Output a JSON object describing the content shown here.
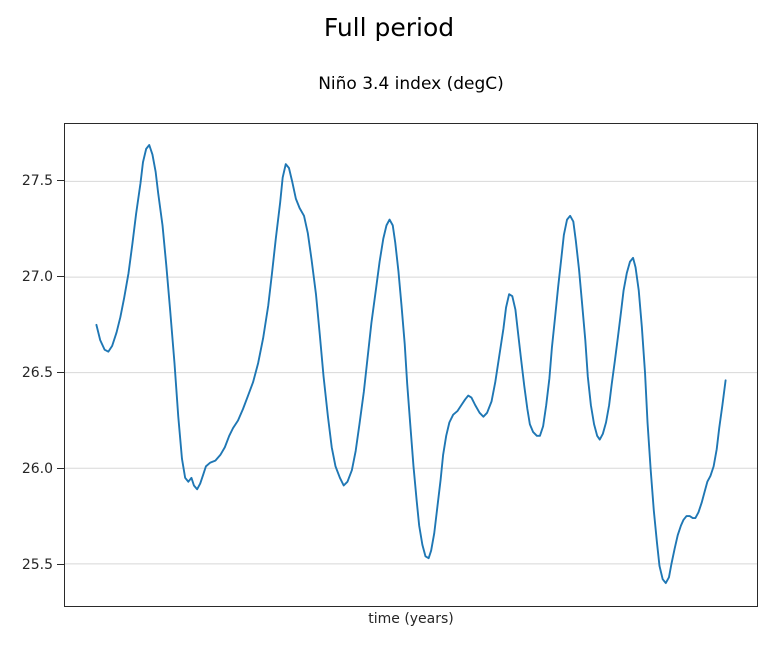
{
  "chart_data": {
    "type": "line",
    "title": "Full period",
    "subtitle": "Niño 3.4 index (degC)",
    "xlabel": "time (years)",
    "ylabel": "",
    "x_tick_labels": [],
    "y_ticks": [
      27.5,
      27.0,
      26.5,
      26.0,
      25.5
    ],
    "ylim": [
      25.28,
      27.8
    ],
    "xlim_fraction": [
      -0.05,
      1.05
    ],
    "grid": "horizontal-only",
    "grid_color": "#d8d8d8",
    "spine_color": "#2a2a2a",
    "legend": "none",
    "series": [
      {
        "name": "Niño 3.4 index (degC)",
        "color": "#1f77b4",
        "points": [
          [
            0.0,
            26.75
          ],
          [
            0.006,
            26.67
          ],
          [
            0.013,
            26.62
          ],
          [
            0.019,
            26.61
          ],
          [
            0.025,
            26.64
          ],
          [
            0.032,
            26.71
          ],
          [
            0.038,
            26.79
          ],
          [
            0.044,
            26.89
          ],
          [
            0.051,
            27.02
          ],
          [
            0.057,
            27.17
          ],
          [
            0.063,
            27.33
          ],
          [
            0.07,
            27.49
          ],
          [
            0.074,
            27.6
          ],
          [
            0.079,
            27.67
          ],
          [
            0.084,
            27.69
          ],
          [
            0.089,
            27.64
          ],
          [
            0.094,
            27.55
          ],
          [
            0.098,
            27.44
          ],
          [
            0.105,
            27.27
          ],
          [
            0.111,
            27.06
          ],
          [
            0.117,
            26.83
          ],
          [
            0.124,
            26.55
          ],
          [
            0.13,
            26.27
          ],
          [
            0.136,
            26.05
          ],
          [
            0.141,
            25.95
          ],
          [
            0.146,
            25.93
          ],
          [
            0.151,
            25.95
          ],
          [
            0.155,
            25.91
          ],
          [
            0.16,
            25.89
          ],
          [
            0.165,
            25.92
          ],
          [
            0.17,
            25.97
          ],
          [
            0.174,
            26.01
          ],
          [
            0.181,
            26.03
          ],
          [
            0.189,
            26.04
          ],
          [
            0.197,
            26.07
          ],
          [
            0.204,
            26.11
          ],
          [
            0.211,
            26.17
          ],
          [
            0.217,
            26.21
          ],
          [
            0.225,
            26.25
          ],
          [
            0.233,
            26.31
          ],
          [
            0.241,
            26.38
          ],
          [
            0.249,
            26.45
          ],
          [
            0.257,
            26.55
          ],
          [
            0.265,
            26.68
          ],
          [
            0.273,
            26.85
          ],
          [
            0.279,
            27.02
          ],
          [
            0.285,
            27.2
          ],
          [
            0.292,
            27.39
          ],
          [
            0.296,
            27.52
          ],
          [
            0.301,
            27.59
          ],
          [
            0.306,
            27.57
          ],
          [
            0.311,
            27.5
          ],
          [
            0.317,
            27.41
          ],
          [
            0.323,
            27.36
          ],
          [
            0.33,
            27.32
          ],
          [
            0.336,
            27.23
          ],
          [
            0.342,
            27.09
          ],
          [
            0.349,
            26.91
          ],
          [
            0.355,
            26.7
          ],
          [
            0.361,
            26.48
          ],
          [
            0.368,
            26.27
          ],
          [
            0.374,
            26.11
          ],
          [
            0.38,
            26.01
          ],
          [
            0.387,
            25.95
          ],
          [
            0.393,
            25.91
          ],
          [
            0.399,
            25.93
          ],
          [
            0.406,
            25.99
          ],
          [
            0.412,
            26.09
          ],
          [
            0.418,
            26.23
          ],
          [
            0.425,
            26.4
          ],
          [
            0.431,
            26.58
          ],
          [
            0.437,
            26.76
          ],
          [
            0.444,
            26.93
          ],
          [
            0.45,
            27.08
          ],
          [
            0.456,
            27.2
          ],
          [
            0.461,
            27.27
          ],
          [
            0.466,
            27.3
          ],
          [
            0.471,
            27.27
          ],
          [
            0.475,
            27.18
          ],
          [
            0.48,
            27.03
          ],
          [
            0.485,
            26.85
          ],
          [
            0.49,
            26.65
          ],
          [
            0.494,
            26.44
          ],
          [
            0.499,
            26.22
          ],
          [
            0.504,
            26.01
          ],
          [
            0.509,
            25.83
          ],
          [
            0.513,
            25.7
          ],
          [
            0.518,
            25.6
          ],
          [
            0.523,
            25.54
          ],
          [
            0.528,
            25.53
          ],
          [
            0.532,
            25.57
          ],
          [
            0.537,
            25.66
          ],
          [
            0.542,
            25.8
          ],
          [
            0.547,
            25.94
          ],
          [
            0.551,
            26.07
          ],
          [
            0.556,
            26.17
          ],
          [
            0.561,
            26.24
          ],
          [
            0.567,
            26.28
          ],
          [
            0.574,
            26.3
          ],
          [
            0.58,
            26.33
          ],
          [
            0.586,
            26.36
          ],
          [
            0.591,
            26.38
          ],
          [
            0.596,
            26.37
          ],
          [
            0.602,
            26.33
          ],
          [
            0.609,
            26.29
          ],
          [
            0.615,
            26.27
          ],
          [
            0.621,
            26.29
          ],
          [
            0.628,
            26.35
          ],
          [
            0.634,
            26.45
          ],
          [
            0.64,
            26.58
          ],
          [
            0.647,
            26.73
          ],
          [
            0.651,
            26.84
          ],
          [
            0.656,
            26.91
          ],
          [
            0.661,
            26.9
          ],
          [
            0.666,
            26.83
          ],
          [
            0.67,
            26.71
          ],
          [
            0.675,
            26.57
          ],
          [
            0.68,
            26.43
          ],
          [
            0.685,
            26.31
          ],
          [
            0.689,
            26.23
          ],
          [
            0.694,
            26.19
          ],
          [
            0.7,
            26.17
          ],
          [
            0.705,
            26.17
          ],
          [
            0.71,
            26.22
          ],
          [
            0.715,
            26.33
          ],
          [
            0.72,
            26.47
          ],
          [
            0.724,
            26.63
          ],
          [
            0.729,
            26.79
          ],
          [
            0.734,
            26.95
          ],
          [
            0.739,
            27.1
          ],
          [
            0.743,
            27.22
          ],
          [
            0.748,
            27.3
          ],
          [
            0.753,
            27.32
          ],
          [
            0.758,
            27.29
          ],
          [
            0.762,
            27.19
          ],
          [
            0.767,
            27.04
          ],
          [
            0.772,
            26.86
          ],
          [
            0.777,
            26.67
          ],
          [
            0.781,
            26.48
          ],
          [
            0.786,
            26.33
          ],
          [
            0.791,
            26.23
          ],
          [
            0.796,
            26.17
          ],
          [
            0.8,
            26.15
          ],
          [
            0.805,
            26.18
          ],
          [
            0.81,
            26.24
          ],
          [
            0.815,
            26.33
          ],
          [
            0.819,
            26.44
          ],
          [
            0.824,
            26.56
          ],
          [
            0.829,
            26.69
          ],
          [
            0.834,
            26.82
          ],
          [
            0.838,
            26.93
          ],
          [
            0.843,
            27.02
          ],
          [
            0.848,
            27.08
          ],
          [
            0.853,
            27.1
          ],
          [
            0.857,
            27.05
          ],
          [
            0.862,
            26.93
          ],
          [
            0.867,
            26.74
          ],
          [
            0.872,
            26.5
          ],
          [
            0.876,
            26.24
          ],
          [
            0.881,
            25.99
          ],
          [
            0.886,
            25.78
          ],
          [
            0.891,
            25.61
          ],
          [
            0.895,
            25.49
          ],
          [
            0.9,
            25.42
          ],
          [
            0.905,
            25.4
          ],
          [
            0.91,
            25.43
          ],
          [
            0.914,
            25.5
          ],
          [
            0.919,
            25.58
          ],
          [
            0.924,
            25.65
          ],
          [
            0.929,
            25.7
          ],
          [
            0.933,
            25.73
          ],
          [
            0.938,
            25.75
          ],
          [
            0.943,
            25.75
          ],
          [
            0.948,
            25.74
          ],
          [
            0.952,
            25.74
          ],
          [
            0.957,
            25.77
          ],
          [
            0.962,
            25.82
          ],
          [
            0.967,
            25.88
          ],
          [
            0.971,
            25.93
          ],
          [
            0.976,
            25.96
          ],
          [
            0.981,
            26.01
          ],
          [
            0.986,
            26.1
          ],
          [
            0.99,
            26.21
          ],
          [
            0.995,
            26.33
          ],
          [
            1.0,
            26.46
          ]
        ]
      }
    ]
  }
}
